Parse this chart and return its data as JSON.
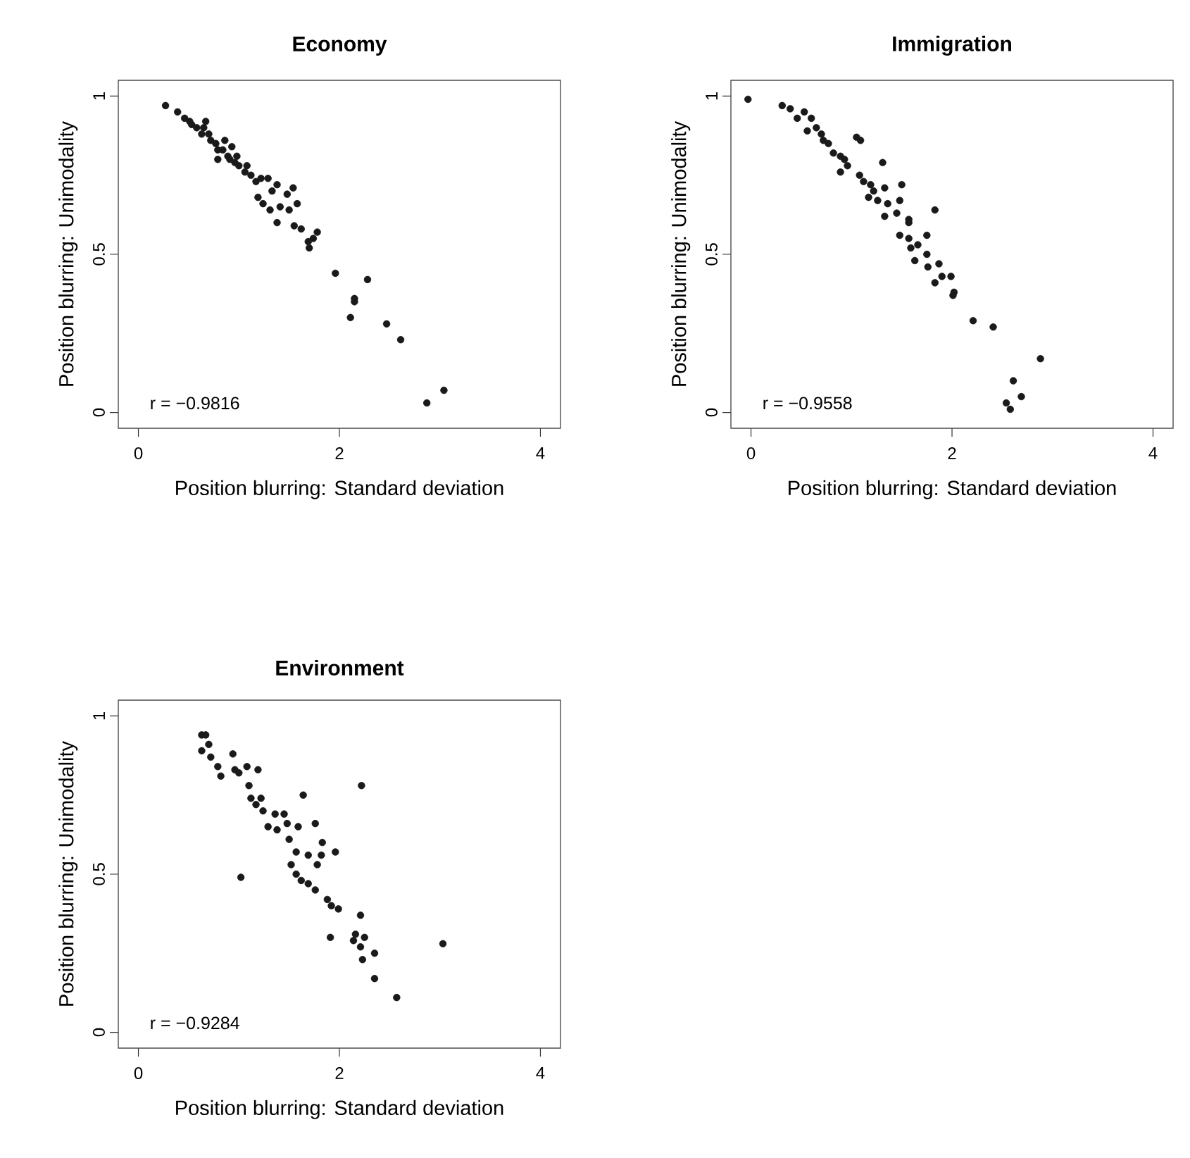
{
  "chart_data": [
    {
      "type": "scatter",
      "title": "Economy",
      "xlabel": "Position blurring: Standard deviation",
      "ylabel": "Position blurring: Unimodality",
      "color": "#1a1a1a",
      "marker": "circle",
      "xlim": [
        -0.2,
        4.2
      ],
      "ylim": [
        -0.05,
        1.05
      ],
      "xticks": [
        0,
        2,
        4
      ],
      "yticks": [
        0,
        0.5,
        1
      ],
      "annotations": [
        "r = −0.9816"
      ],
      "x": [
        0.27,
        0.39,
        0.46,
        0.51,
        0.53,
        0.58,
        0.67,
        0.63,
        0.7,
        0.72,
        0.77,
        0.79,
        0.84,
        0.89,
        0.93,
        0.91,
        0.96,
        1.0,
        1.06,
        1.12,
        1.17,
        1.22,
        1.29,
        1.38,
        1.54,
        1.33,
        1.48,
        1.19,
        1.24,
        1.31,
        1.41,
        1.58,
        1.5,
        1.38,
        1.55,
        1.62,
        1.78,
        1.74,
        1.69,
        1.7,
        0.79,
        0.65,
        0.98,
        0.86,
        1.08,
        1.96,
        2.28,
        2.15,
        2.15,
        2.11,
        2.47,
        2.61,
        3.04,
        2.87
      ],
      "values": [
        0.97,
        0.95,
        0.93,
        0.92,
        0.91,
        0.9,
        0.92,
        0.88,
        0.88,
        0.86,
        0.85,
        0.83,
        0.83,
        0.81,
        0.84,
        0.8,
        0.79,
        0.78,
        0.76,
        0.75,
        0.73,
        0.74,
        0.74,
        0.72,
        0.71,
        0.7,
        0.69,
        0.68,
        0.66,
        0.64,
        0.65,
        0.66,
        0.64,
        0.6,
        0.59,
        0.58,
        0.57,
        0.55,
        0.54,
        0.52,
        0.8,
        0.9,
        0.81,
        0.86,
        0.78,
        0.44,
        0.42,
        0.36,
        0.35,
        0.3,
        0.28,
        0.23,
        0.07,
        0.03
      ]
    },
    {
      "type": "scatter",
      "title": "Immigration",
      "xlabel": "Position blurring: Standard deviation",
      "ylabel": "Position blurring: Unimodality",
      "color": "#1a1a1a",
      "marker": "circle",
      "xlim": [
        -0.2,
        4.2
      ],
      "ylim": [
        -0.05,
        1.05
      ],
      "xticks": [
        0,
        2,
        4
      ],
      "yticks": [
        0,
        0.5,
        1
      ],
      "annotations": [
        "r = −0.9558"
      ],
      "x": [
        -0.03,
        0.31,
        0.39,
        0.46,
        0.53,
        0.6,
        0.56,
        0.65,
        0.7,
        0.72,
        0.77,
        0.82,
        0.89,
        0.93,
        0.89,
        0.96,
        1.05,
        1.09,
        1.31,
        1.08,
        1.12,
        1.19,
        1.22,
        1.33,
        1.5,
        1.17,
        1.26,
        1.36,
        1.48,
        1.33,
        1.45,
        1.57,
        1.57,
        1.83,
        1.48,
        1.57,
        1.75,
        1.59,
        1.66,
        1.63,
        1.75,
        1.87,
        1.76,
        1.83,
        1.9,
        1.99,
        2.02,
        2.01,
        2.21,
        2.41,
        2.88,
        2.61,
        2.69,
        2.54,
        2.58
      ],
      "values": [
        0.99,
        0.97,
        0.96,
        0.93,
        0.95,
        0.93,
        0.89,
        0.9,
        0.88,
        0.86,
        0.85,
        0.82,
        0.81,
        0.8,
        0.76,
        0.78,
        0.87,
        0.86,
        0.79,
        0.75,
        0.73,
        0.72,
        0.7,
        0.71,
        0.72,
        0.68,
        0.67,
        0.66,
        0.67,
        0.62,
        0.63,
        0.61,
        0.6,
        0.64,
        0.56,
        0.55,
        0.56,
        0.52,
        0.53,
        0.48,
        0.5,
        0.47,
        0.46,
        0.41,
        0.43,
        0.43,
        0.38,
        0.37,
        0.29,
        0.27,
        0.17,
        0.1,
        0.05,
        0.03,
        0.01
      ]
    },
    {
      "type": "scatter",
      "title": "Environment",
      "xlabel": "Position blurring: Standard deviation",
      "ylabel": "Position blurring: Unimodality",
      "color": "#1a1a1a",
      "marker": "circle",
      "xlim": [
        -0.2,
        4.2
      ],
      "ylim": [
        -0.05,
        1.05
      ],
      "xticks": [
        0,
        2,
        4
      ],
      "yticks": [
        0,
        0.5,
        1
      ],
      "annotations": [
        "r = −0.9284"
      ],
      "x": [
        0.63,
        0.67,
        0.7,
        0.63,
        0.72,
        0.79,
        0.82,
        0.94,
        0.96,
        1.0,
        1.08,
        1.19,
        1.1,
        1.12,
        1.22,
        1.17,
        1.24,
        1.29,
        1.36,
        1.45,
        1.38,
        1.48,
        1.59,
        1.64,
        1.76,
        1.5,
        1.57,
        1.52,
        1.57,
        1.69,
        1.78,
        1.83,
        1.82,
        1.96,
        1.62,
        1.69,
        1.76,
        1.02,
        2.22,
        1.88,
        1.92,
        1.99,
        2.21,
        1.91,
        2.16,
        2.25,
        2.14,
        2.21,
        2.35,
        2.23,
        3.03,
        2.35,
        2.57
      ],
      "values": [
        0.94,
        0.94,
        0.91,
        0.89,
        0.87,
        0.84,
        0.81,
        0.88,
        0.83,
        0.82,
        0.84,
        0.83,
        0.78,
        0.74,
        0.74,
        0.72,
        0.7,
        0.65,
        0.69,
        0.69,
        0.64,
        0.66,
        0.65,
        0.75,
        0.66,
        0.61,
        0.57,
        0.53,
        0.5,
        0.56,
        0.53,
        0.6,
        0.56,
        0.57,
        0.48,
        0.47,
        0.45,
        0.49,
        0.78,
        0.42,
        0.4,
        0.39,
        0.37,
        0.3,
        0.31,
        0.3,
        0.29,
        0.27,
        0.25,
        0.23,
        0.28,
        0.17,
        0.11
      ]
    }
  ]
}
